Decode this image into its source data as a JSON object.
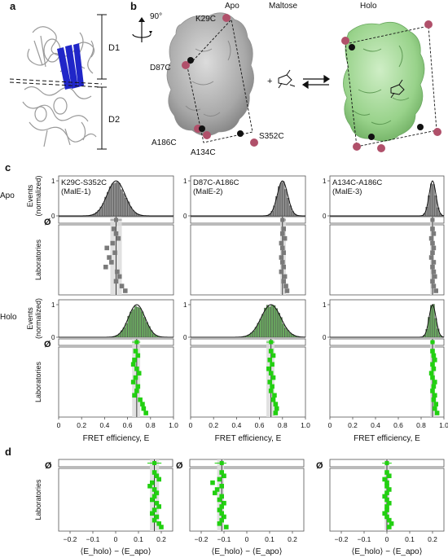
{
  "panels": {
    "a": {
      "label": "a",
      "domain_labels": [
        "D1",
        "D2"
      ]
    },
    "b": {
      "label": "b",
      "rotation": "90°",
      "state_labels": {
        "apo": "Apo",
        "ligand": "Maltose",
        "holo": "Holo"
      },
      "plus": "+",
      "residues": [
        "K29C",
        "D87C",
        "A186C",
        "A134C",
        "S352C"
      ]
    },
    "c": {
      "label": "c"
    },
    "d": {
      "label": "d"
    }
  },
  "colors": {
    "apo_bar": "#8c8c8c",
    "holo_bar": "#6aa860",
    "apo_lab": "#7a7a7a",
    "holo_lab": "#22d011",
    "fit_line": "#111111",
    "band": "#dcdcdc",
    "helix": "#2026c8",
    "apo_surface": "#b8b8b8",
    "holo_surface": "#a5d89a",
    "cys": "#b0506a"
  },
  "chart_data": [
    {
      "type": "bar",
      "panel": "c",
      "description_rows": [
        "Apo",
        "Holo"
      ],
      "row_labels": {
        "apo": "Apo",
        "holo": "Holo"
      },
      "events_label": [
        "Events",
        "(normalized)"
      ],
      "labs_label": "Laboratories",
      "null_symbol": "Ø",
      "xlabel": "FRET efficiency, E",
      "xlim": [
        0,
        1.0
      ],
      "xticks": [
        "0",
        "0.2",
        "0.4",
        "0.6",
        "0.8",
        "1.0"
      ],
      "yticks": [
        "0",
        "1"
      ],
      "columns": [
        {
          "title": [
            "K29C-S352C",
            "(MalE-1)"
          ],
          "apo": {
            "mean": 0.5,
            "sd": 0.078,
            "band": [
              0.45,
              0.55
            ],
            "labs": [
              0.48,
              0.5,
              0.52,
              0.47,
              0.42,
              0.49,
              0.44,
              0.46,
              0.41,
              0.51,
              0.53,
              0.5,
              0.55,
              0.58
            ]
          },
          "holo": {
            "mean": 0.68,
            "sd": 0.072,
            "band": [
              0.64,
              0.71
            ],
            "labs": [
              0.67,
              0.69,
              0.66,
              0.65,
              0.68,
              0.7,
              0.67,
              0.65,
              0.69,
              0.68,
              0.66,
              0.71,
              0.73,
              0.74,
              0.76
            ]
          }
        },
        {
          "title": [
            "D87C-A186C",
            "(MalE-2)"
          ],
          "apo": {
            "mean": 0.8,
            "sd": 0.045,
            "band": [
              0.78,
              0.83
            ],
            "labs": [
              0.81,
              0.8,
              0.82,
              0.79,
              0.8,
              0.81,
              0.79,
              0.8,
              0.81,
              0.79,
              0.82,
              0.81,
              0.83,
              0.84
            ]
          },
          "holo": {
            "mean": 0.7,
            "sd": 0.085,
            "band": [
              0.66,
              0.73
            ],
            "labs": [
              0.7,
              0.72,
              0.69,
              0.71,
              0.68,
              0.7,
              0.72,
              0.69,
              0.71,
              0.7,
              0.73,
              0.72,
              0.74,
              0.75,
              0.74
            ]
          }
        },
        {
          "title": [
            "A134C-A186C",
            "(MalE-3)"
          ],
          "apo": {
            "mean": 0.9,
            "sd": 0.03,
            "band": [
              0.88,
              0.91
            ],
            "labs": [
              0.9,
              0.91,
              0.89,
              0.9,
              0.91,
              0.9,
              0.89,
              0.91,
              0.9,
              0.91,
              0.92,
              0.9,
              0.91,
              0.93
            ]
          },
          "holo": {
            "mean": 0.9,
            "sd": 0.03,
            "band": [
              0.88,
              0.92
            ],
            "labs": [
              0.9,
              0.91,
              0.92,
              0.9,
              0.91,
              0.89,
              0.9,
              0.92,
              0.91,
              0.9,
              0.92,
              0.91,
              0.93,
              0.92,
              0.94
            ]
          }
        }
      ]
    },
    {
      "type": "scatter",
      "panel": "d",
      "labs_label": "Laboratories",
      "null_symbol": "Ø",
      "xlabel": "⟨E_holo⟩ − ⟨E_apo⟩",
      "xlim": [
        -0.25,
        0.25
      ],
      "xticks": [
        "−0.2",
        "−0.1",
        "0",
        "0.1",
        "0.2"
      ],
      "columns": [
        {
          "mean": 0.17,
          "band": [
            0.15,
            0.19
          ],
          "labs": [
            0.17,
            0.18,
            0.19,
            0.16,
            0.15,
            0.17,
            0.18,
            0.17,
            0.16,
            0.18,
            0.19,
            0.17,
            0.16,
            0.18,
            0.17,
            0.19,
            0.2
          ]
        },
        {
          "mean": -0.11,
          "band": [
            -0.13,
            -0.1
          ],
          "labs": [
            -0.11,
            -0.1,
            -0.12,
            -0.15,
            -0.11,
            -0.13,
            -0.14,
            -0.11,
            -0.12,
            -0.1,
            -0.11,
            -0.12,
            -0.11,
            -0.1,
            -0.11,
            -0.12,
            -0.09
          ]
        },
        {
          "mean": 0.0,
          "band": [
            -0.01,
            0.01
          ],
          "labs": [
            0.0,
            0.01,
            -0.01,
            0.0,
            0.0,
            0.01,
            0.0,
            -0.01,
            0.0,
            0.01,
            0.0,
            0.0,
            -0.01,
            0.0,
            0.01,
            0.02,
            0.01
          ]
        }
      ]
    }
  ]
}
